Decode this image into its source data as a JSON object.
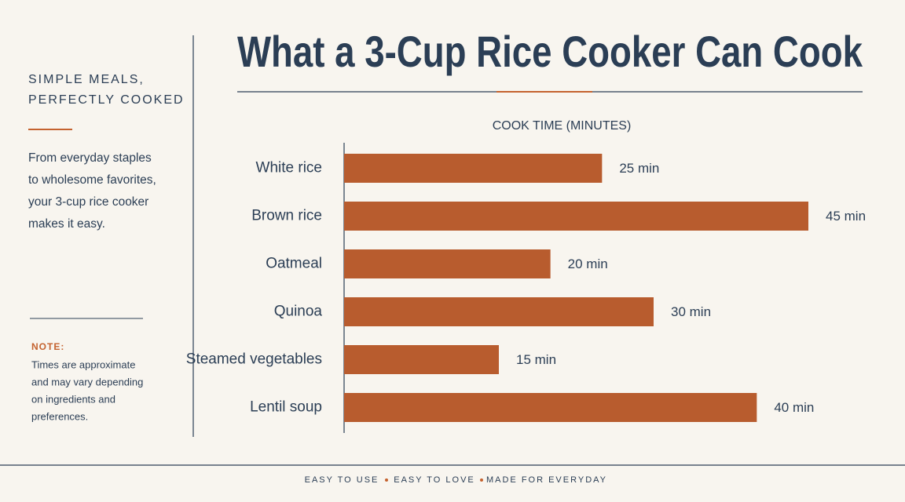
{
  "chart_data": {
    "type": "bar",
    "orientation": "horizontal",
    "title": "What a 3-Cup Rice Cooker Can Cook",
    "x_label": "COOK TIME (MINUTES)",
    "categories": [
      "White rice",
      "Brown rice",
      "Oatmeal",
      "Quinoa",
      "Steamed vegetables",
      "Lentil soup"
    ],
    "values": [
      25,
      45,
      20,
      30,
      15,
      40
    ],
    "value_labels": [
      "25 min",
      "45 min",
      "20 min",
      "30 min",
      "15 min",
      "40 min"
    ],
    "color": "#b85c2e",
    "xlim": [
      0,
      45
    ]
  },
  "sidebar": {
    "heading": [
      "SIMPLE MEALS,",
      "PERFECTLY COOKED"
    ],
    "body": [
      "From everyday staples",
      "to wholesome favorites,",
      "your 3-cup rice cooker",
      "makes it easy."
    ],
    "note_label": "NOTE:",
    "note": [
      "Times are approximate",
      "and may vary depending",
      "on ingredients and",
      "preferences."
    ]
  },
  "footer": [
    "EASY TO USE",
    "EASY TO LOVE",
    "MADE FOR EVERYDAY"
  ]
}
